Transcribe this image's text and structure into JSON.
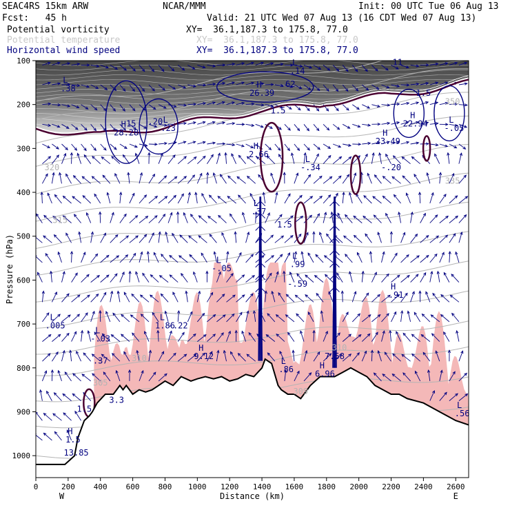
{
  "header": {
    "model": "SEAC4RS 15km ARW",
    "org": "NCAR/MMM",
    "init": "Init: 00 UTC Tue 06 Aug 13",
    "fcst": "Fcst:   45 h",
    "valid": "Valid: 21 UTC Wed 07 Aug 13 (16 CDT Wed 07 Aug 13)",
    "fields": [
      {
        "name": "Potential vorticity",
        "xy": "XY=  36.1,187.3 to 175.8, 77.0",
        "color": "#000000"
      },
      {
        "name": "Potential temperature",
        "xy": "XY=  36.1,187.3 to 175.8, 77.0",
        "color": "#c8c8c8"
      },
      {
        "name": "Horizontal wind speed",
        "xy": "XY=  36.1,187.3 to 175.8, 77.0",
        "color": "#00007f"
      }
    ]
  },
  "colors": {
    "pv_fill": "#555555",
    "pv_contour": "#4a0030",
    "theta": "#b4b4b4",
    "wind": "#000080",
    "moisture": "#f4b8b8",
    "terrain": "#000000"
  },
  "chart_data": {
    "type": "cross-section",
    "xlabel": "Distance (km)",
    "ylabel": "Pressure (hPa)",
    "xlim": [
      0,
      2680
    ],
    "ylim": [
      1050,
      100
    ],
    "x_ticks": [
      0,
      200,
      400,
      600,
      800,
      1000,
      1200,
      1400,
      1600,
      1800,
      2000,
      2200,
      2400,
      2600
    ],
    "y_ticks": [
      100,
      200,
      300,
      400,
      500,
      600,
      700,
      800,
      900,
      1000
    ],
    "endpoints": {
      "left": "W",
      "right": "E"
    },
    "terrain": [
      [
        0,
        1020
      ],
      [
        80,
        1020
      ],
      [
        180,
        1020
      ],
      [
        240,
        1000
      ],
      [
        260,
        960
      ],
      [
        300,
        920
      ],
      [
        330,
        910
      ],
      [
        350,
        900
      ],
      [
        380,
        880
      ],
      [
        430,
        860
      ],
      [
        480,
        860
      ],
      [
        520,
        840
      ],
      [
        540,
        850
      ],
      [
        560,
        840
      ],
      [
        600,
        860
      ],
      [
        640,
        850
      ],
      [
        680,
        855
      ],
      [
        720,
        850
      ],
      [
        760,
        840
      ],
      [
        800,
        830
      ],
      [
        850,
        840
      ],
      [
        900,
        820
      ],
      [
        960,
        830
      ],
      [
        1000,
        825
      ],
      [
        1050,
        820
      ],
      [
        1100,
        825
      ],
      [
        1150,
        820
      ],
      [
        1200,
        830
      ],
      [
        1250,
        825
      ],
      [
        1300,
        815
      ],
      [
        1350,
        820
      ],
      [
        1400,
        800
      ],
      [
        1420,
        780
      ],
      [
        1460,
        790
      ],
      [
        1500,
        840
      ],
      [
        1520,
        850
      ],
      [
        1560,
        860
      ],
      [
        1600,
        860
      ],
      [
        1640,
        870
      ],
      [
        1700,
        840
      ],
      [
        1760,
        820
      ],
      [
        1800,
        820
      ],
      [
        1850,
        820
      ],
      [
        1900,
        810
      ],
      [
        1950,
        800
      ],
      [
        2000,
        810
      ],
      [
        2050,
        820
      ],
      [
        2100,
        840
      ],
      [
        2150,
        850
      ],
      [
        2200,
        860
      ],
      [
        2250,
        860
      ],
      [
        2300,
        870
      ],
      [
        2400,
        880
      ],
      [
        2500,
        900
      ],
      [
        2600,
        920
      ],
      [
        2680,
        930
      ]
    ],
    "theta_labels": [
      {
        "x": 100,
        "p": 350,
        "text": "320"
      },
      {
        "x": 150,
        "p": 470,
        "text": "315"
      },
      {
        "x": 2580,
        "p": 380,
        "text": "335"
      },
      {
        "x": 2580,
        "p": 200,
        "text": "350"
      },
      {
        "x": 640,
        "p": 785,
        "text": "310"
      },
      {
        "x": 400,
        "p": 840,
        "text": "305"
      },
      {
        "x": 1640,
        "p": 860,
        "text": "309"
      },
      {
        "x": 1880,
        "p": 760,
        "text": "310"
      }
    ],
    "annotations": [
      {
        "x": 200,
        "p": 170,
        "kind": "L",
        "value": ".38"
      },
      {
        "x": 560,
        "p": 270,
        "kind": "H",
        "value": "28.28"
      },
      {
        "x": 590,
        "p": 250,
        "kind": "",
        "value": "15"
      },
      {
        "x": 740,
        "p": 245,
        "kind": "",
        "value": ".20"
      },
      {
        "x": 820,
        "p": 260,
        "kind": "L",
        "value": ".23"
      },
      {
        "x": 1400,
        "p": 180,
        "kind": "H",
        "value": "26.39"
      },
      {
        "x": 1560,
        "p": 160,
        "kind": "",
        "value": ".62"
      },
      {
        "x": 1620,
        "p": 130,
        "kind": "L",
        "value": ".14"
      },
      {
        "x": 2240,
        "p": 110,
        "kind": "",
        "value": "11"
      },
      {
        "x": 2400,
        "p": 180,
        "kind": "",
        "value": "1.5"
      },
      {
        "x": 1500,
        "p": 220,
        "kind": "",
        "value": "1.5"
      },
      {
        "x": 2350,
        "p": 250,
        "kind": "H",
        "value": "22.94"
      },
      {
        "x": 2590,
        "p": 260,
        "kind": "L",
        "value": "-.05"
      },
      {
        "x": 2180,
        "p": 290,
        "kind": "H",
        "value": "23.49"
      },
      {
        "x": 2200,
        "p": 350,
        "kind": "",
        "value": "-.20"
      },
      {
        "x": 1380,
        "p": 320,
        "kind": "H",
        "value": "2.66"
      },
      {
        "x": 1700,
        "p": 350,
        "kind": "L",
        "value": "-.34"
      },
      {
        "x": 1380,
        "p": 450,
        "kind": "L",
        "value": ".37"
      },
      {
        "x": 1540,
        "p": 480,
        "kind": "",
        "value": "1.5"
      },
      {
        "x": 1620,
        "p": 570,
        "kind": "L",
        "value": ".99"
      },
      {
        "x": 1620,
        "p": 615,
        "kind": "",
        "value": "-.59"
      },
      {
        "x": 1150,
        "p": 580,
        "kind": "L",
        "value": "-.05"
      },
      {
        "x": 2230,
        "p": 640,
        "kind": "H",
        "value": ".91"
      },
      {
        "x": 120,
        "p": 710,
        "kind": "L",
        "value": ".005"
      },
      {
        "x": 400,
        "p": 740,
        "kind": "L",
        "value": "-.03"
      },
      {
        "x": 400,
        "p": 790,
        "kind": "",
        "value": ".37"
      },
      {
        "x": 800,
        "p": 710,
        "kind": "L",
        "value": "1.86"
      },
      {
        "x": 880,
        "p": 710,
        "kind": "",
        "value": "-.22"
      },
      {
        "x": 1040,
        "p": 780,
        "kind": "H",
        "value": "9.12"
      },
      {
        "x": 1550,
        "p": 810,
        "kind": "L",
        "value": ".86"
      },
      {
        "x": 1850,
        "p": 780,
        "kind": "",
        "value": "7.58"
      },
      {
        "x": 1790,
        "p": 820,
        "kind": "H",
        "value": "6.96"
      },
      {
        "x": 500,
        "p": 880,
        "kind": "",
        "value": "3.3"
      },
      {
        "x": 300,
        "p": 900,
        "kind": "",
        "value": "1.5"
      },
      {
        "x": 230,
        "p": 970,
        "kind": "H",
        "value": "1.5"
      },
      {
        "x": 250,
        "p": 1000,
        "kind": "",
        "value": "13.85"
      },
      {
        "x": 2640,
        "p": 910,
        "kind": "L",
        "value": ".56"
      }
    ]
  }
}
